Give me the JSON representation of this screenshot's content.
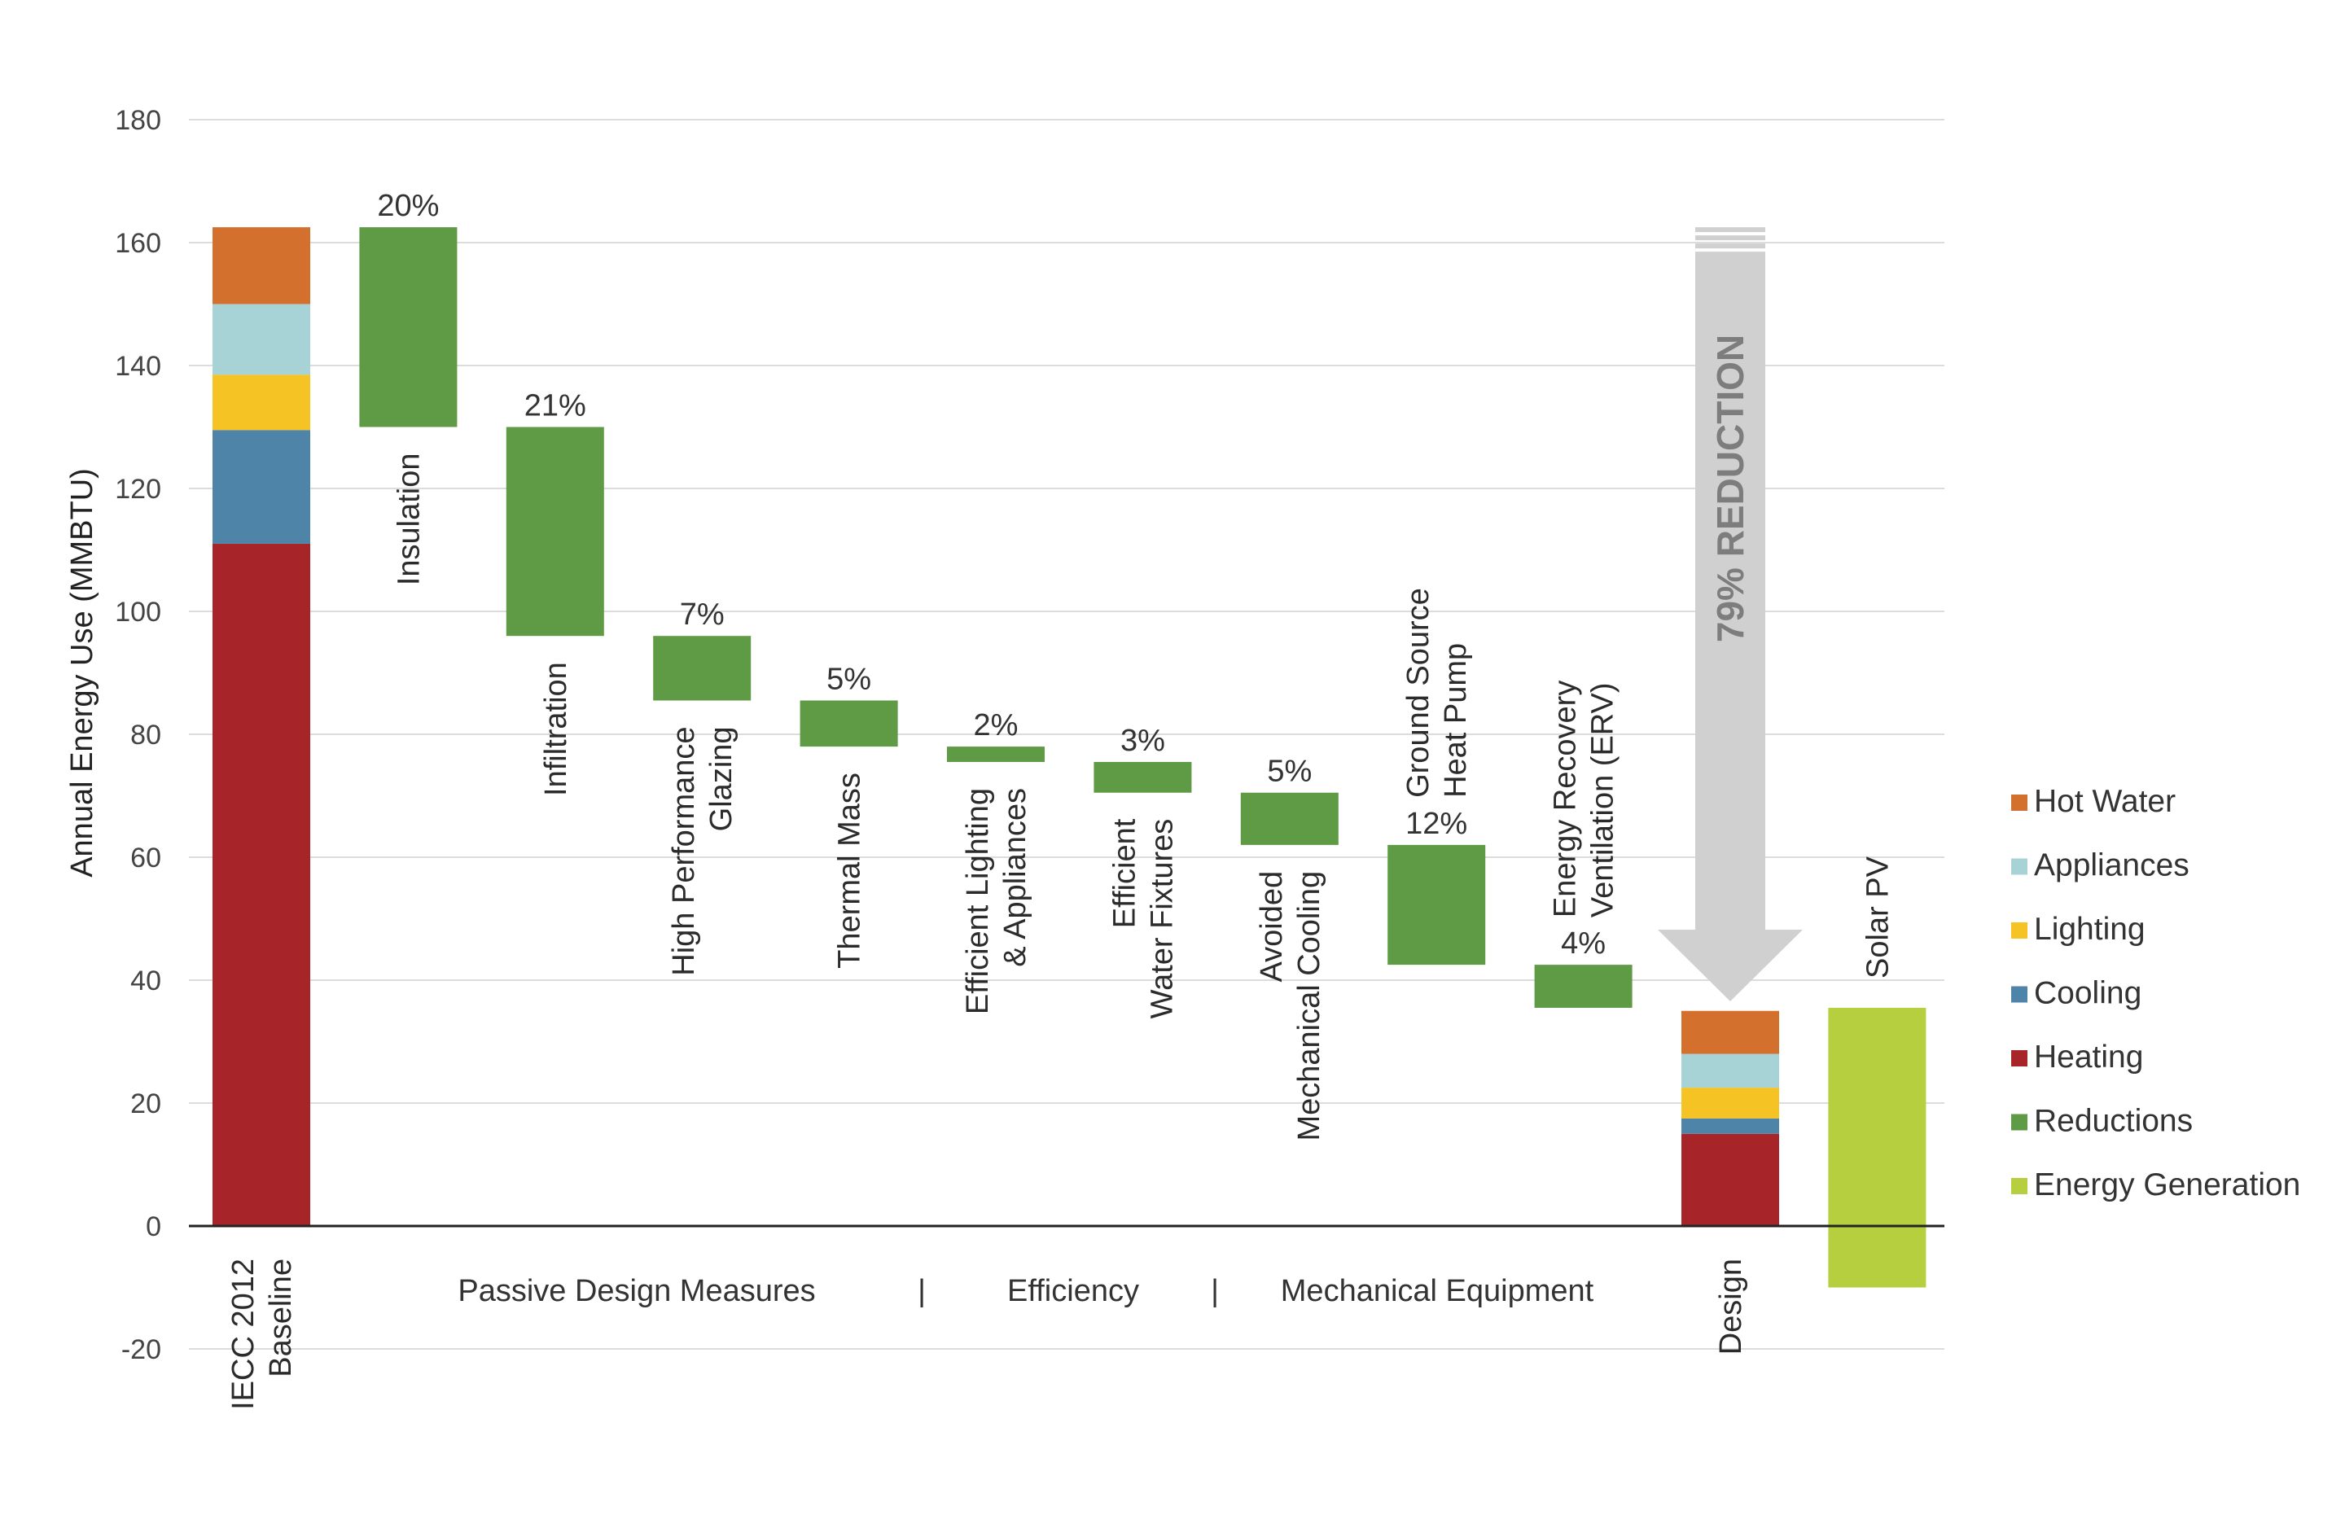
{
  "chart_data": {
    "type": "bar",
    "subtype": "waterfall",
    "title": "",
    "ylabel": "Annual Energy Use (MMBTU)",
    "ylim": [
      -20,
      180
    ],
    "yticks": [
      -20,
      0,
      20,
      40,
      60,
      80,
      100,
      120,
      140,
      160,
      180
    ],
    "grid": true,
    "legend_position": "right",
    "colors": {
      "Hot Water": "#d4702e",
      "Appliances": "#a7d3d6",
      "Lighting": "#f6c324",
      "Cooling": "#4e84a8",
      "Heating": "#a72428",
      "Reductions": "#5f9a44",
      "Energy Generation": "#b6cf3e"
    },
    "legend": [
      "Hot Water",
      "Appliances",
      "Lighting",
      "Cooling",
      "Heating",
      "Reductions",
      "Energy Generation"
    ],
    "stacked_bars": [
      {
        "label": "IECC 2012 Baseline",
        "label_lines": [
          "IECC 2012",
          "Baseline"
        ],
        "segments": [
          {
            "name": "Heating",
            "value": 111
          },
          {
            "name": "Cooling",
            "value": 18.5
          },
          {
            "name": "Lighting",
            "value": 9
          },
          {
            "name": "Appliances",
            "value": 11.5
          },
          {
            "name": "Hot Water",
            "value": 12.5
          }
        ]
      },
      {
        "label": "Design",
        "label_lines": [
          "Design"
        ],
        "segments": [
          {
            "name": "Heating",
            "value": 15
          },
          {
            "name": "Cooling",
            "value": 2.5
          },
          {
            "name": "Lighting",
            "value": 5
          },
          {
            "name": "Appliances",
            "value": 5.5
          },
          {
            "name": "Hot Water",
            "value": 7
          }
        ]
      }
    ],
    "reductions": [
      {
        "label": "Insulation",
        "label_lines": [
          "Insulation"
        ],
        "pct": "20%",
        "start": 162.5,
        "end": 130
      },
      {
        "label": "Infiltration",
        "label_lines": [
          "Infiltration"
        ],
        "pct": "21%",
        "start": 130,
        "end": 96
      },
      {
        "label": "High Performance Glazing",
        "label_lines": [
          "High Performance",
          "Glazing"
        ],
        "pct": "7%",
        "start": 96,
        "end": 85.5
      },
      {
        "label": "Thermal Mass",
        "label_lines": [
          "Thermal Mass"
        ],
        "pct": "5%",
        "start": 85.5,
        "end": 78
      },
      {
        "label": "Efficient Lighting & Appliances",
        "label_lines": [
          "Efficient Lighting",
          "& Appliances"
        ],
        "pct": "2%",
        "start": 78,
        "end": 75.5
      },
      {
        "label": "Efficient Water Fixtures",
        "label_lines": [
          "Efficient",
          "Water Fixtures"
        ],
        "pct": "3%",
        "start": 75.5,
        "end": 70.5
      },
      {
        "label": "Avoided Mechanical Cooling",
        "label_lines": [
          "Avoided",
          "Mechanical Cooling"
        ],
        "pct": "5%",
        "start": 70.5,
        "end": 62
      },
      {
        "label": "Ground Source Heat Pump",
        "label_lines": [
          "Ground Source",
          "Heat Pump"
        ],
        "pct": "12%",
        "start": 62,
        "end": 42.5
      },
      {
        "label": "Energy Recovery Ventilation (ERV)",
        "label_lines": [
          "Energy Recovery",
          "Ventilation (ERV)"
        ],
        "pct": "4%",
        "start": 42.5,
        "end": 35.5
      }
    ],
    "generation": {
      "label": "Solar PV",
      "label_lines": [
        "Solar PV"
      ],
      "top": 35.5,
      "bottom": -10
    },
    "groups": [
      {
        "label": "Passive Design Measures"
      },
      {
        "label": "|"
      },
      {
        "label": "Efficiency"
      },
      {
        "label": "|"
      },
      {
        "label": "Mechanical Equipment"
      }
    ],
    "annotation": {
      "text": "79% REDUCTION",
      "from": 162.5,
      "to": 35.5
    }
  }
}
